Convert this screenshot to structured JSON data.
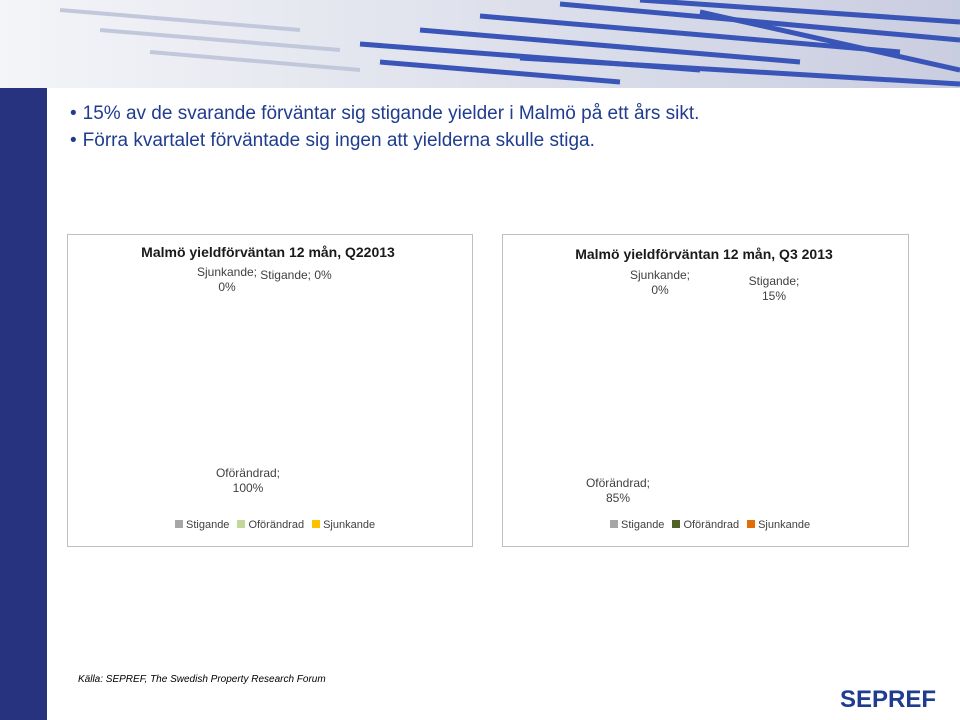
{
  "bullets": [
    "15% av de svarande förväntar sig stigande yielder i Malmö på ett års sikt.",
    "Förra kvartalet förväntade sig ingen att yielderna skulle stiga."
  ],
  "chart_data": [
    {
      "type": "pie",
      "title": "Malmö yieldförväntan 12 mån, Q22013",
      "categories": [
        "Stigande",
        "Oförändrad",
        "Sjunkande"
      ],
      "values": [
        0,
        100,
        0
      ],
      "value_labels": [
        "Stigande; 0%",
        "Oförändrad; 100%",
        "Sjunkande; 0%"
      ],
      "colors": [
        "#a6a6a6",
        "#c4d79b",
        "#ffc000"
      ],
      "legend": "bottom"
    },
    {
      "type": "pie",
      "title": "Malmö yieldförväntan 12 mån, Q3 2013",
      "categories": [
        "Stigande",
        "Oförändrad",
        "Sjunkande"
      ],
      "values": [
        15,
        85,
        0
      ],
      "value_labels": [
        "Stigande; 15%",
        "Oförändrad; 85%",
        "Sjunkande; 0%"
      ],
      "colors": [
        "#a6a6a6",
        "#4f6228",
        "#e36c09"
      ],
      "legend": "bottom"
    }
  ],
  "source": "Källa: SEPREF, The Swedish Property Research Forum",
  "logo": "SEPREF"
}
